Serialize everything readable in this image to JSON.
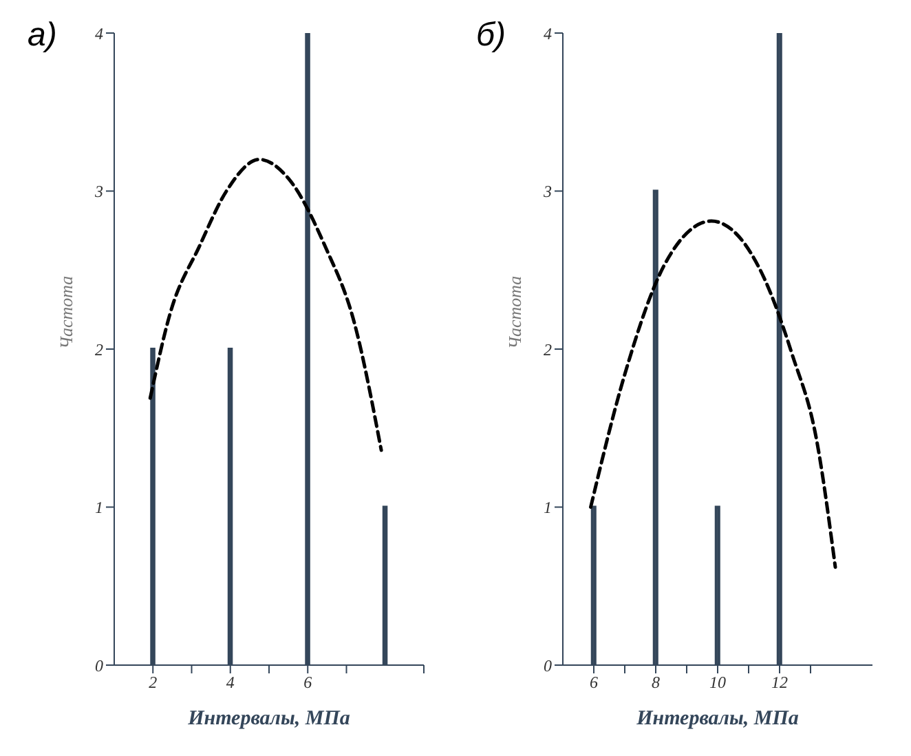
{
  "chart_data": [
    {
      "type": "bar",
      "title": "а)",
      "xlabel": "Интервалы, МПа",
      "ylabel": "Частота",
      "x": [
        2,
        4,
        6,
        8
      ],
      "xlim": [
        1,
        9
      ],
      "xticks": [
        2,
        4,
        6,
        {
          "value": 3,
          "label": null
        },
        {
          "value": 5,
          "label": null
        },
        {
          "value": 7,
          "label": null
        },
        {
          "value": 9,
          "label": null
        }
      ],
      "ylim": [
        0,
        4
      ],
      "yticks": [
        0,
        1,
        2,
        3,
        4
      ],
      "grid": false,
      "legend": false,
      "series": [
        {
          "color": "#34465a",
          "values": [
            2,
            2,
            4,
            1
          ]
        },
        {
          "type": "line",
          "color": "#000000",
          "line_style": "dashed",
          "marker": "none",
          "x": [
            1.93,
            2.45,
            3.2,
            3.9,
            4.75,
            5.5,
            6.45,
            7.2,
            7.9
          ],
          "values": [
            1.69,
            2.23,
            2.65,
            3.0,
            3.2,
            3.08,
            2.65,
            2.17,
            1.36
          ]
        }
      ]
    },
    {
      "type": "bar",
      "title": "б)",
      "xlabel": "Интервалы, МПа",
      "ylabel": "Частота",
      "x": [
        6,
        8,
        10,
        12
      ],
      "xlim": [
        5,
        15
      ],
      "xticks": [
        6,
        8,
        10,
        12,
        {
          "value": 7,
          "label": null
        },
        {
          "value": 9,
          "label": null
        },
        {
          "value": 11,
          "label": null
        },
        {
          "value": 13,
          "label": null
        }
      ],
      "ylim": [
        0,
        4
      ],
      "yticks": [
        0,
        1,
        2,
        3,
        4
      ],
      "grid": false,
      "legend": false,
      "series": [
        {
          "color": "#34465a",
          "values": [
            1,
            3,
            1,
            4
          ]
        },
        {
          "type": "line",
          "color": "#000000",
          "line_style": "dashed",
          "marker": "none",
          "x": [
            5.9,
            7.0,
            8.3,
            9.8,
            11.5,
            12.4,
            13.2,
            13.8
          ],
          "values": [
            1.0,
            1.84,
            2.54,
            2.81,
            2.45,
            1.97,
            1.42,
            0.62
          ]
        }
      ]
    }
  ]
}
